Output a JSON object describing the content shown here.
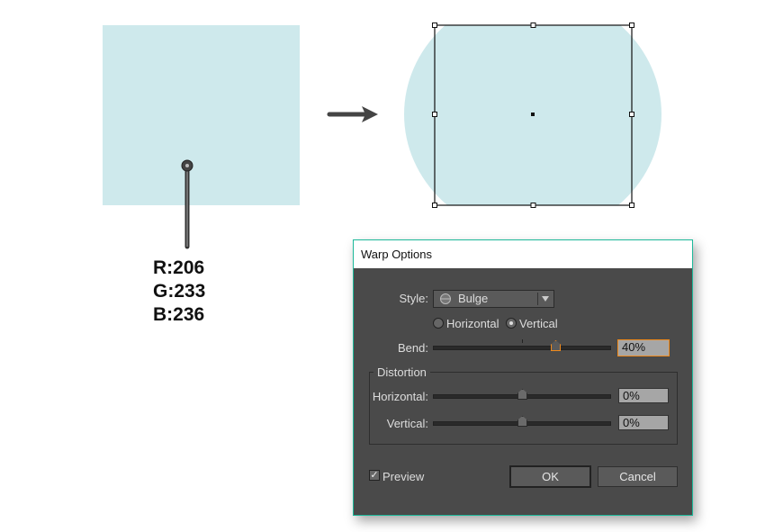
{
  "colors": {
    "shape_fill": "#cee9ec",
    "dialog_bg": "#4a4a4a",
    "accent": "#f08a1c",
    "dialog_border": "#1db99a"
  },
  "canvas": {
    "rgb": [
      "R:206",
      "G:233",
      "B:236"
    ],
    "icons": [
      "eyedropper-icon",
      "arrow-right-icon"
    ]
  },
  "dialog": {
    "title": "Warp Options",
    "style_label": "Style:",
    "style_value": "Bulge",
    "orientation": {
      "horizontal": "Horizontal",
      "vertical": "Vertical",
      "selected": "Vertical"
    },
    "bend_label": "Bend:",
    "bend_value": "40%",
    "bend_percent": 40,
    "distortion_label": "Distortion",
    "dist_h_label": "Horizontal:",
    "dist_h_value": "0%",
    "dist_h_percent": 0,
    "dist_v_label": "Vertical:",
    "dist_v_value": "0%",
    "dist_v_percent": 0,
    "preview_label": "Preview",
    "preview_checked": true,
    "ok_label": "OK",
    "cancel_label": "Cancel"
  }
}
